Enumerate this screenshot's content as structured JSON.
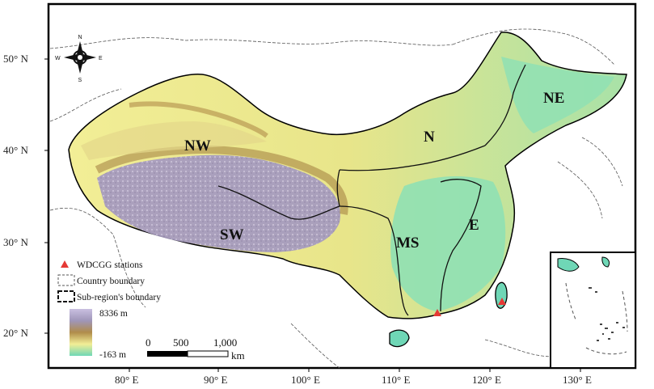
{
  "map": {
    "longitude_ticks": [
      "80° E",
      "90° E",
      "100° E",
      "110° E",
      "120° E",
      "130° E"
    ],
    "latitude_ticks": [
      "20° N",
      "30° N",
      "40° N",
      "50° N"
    ],
    "regions": [
      {
        "code": "NW"
      },
      {
        "code": "SW"
      },
      {
        "code": "N"
      },
      {
        "code": "NE"
      },
      {
        "code": "MS"
      },
      {
        "code": "E"
      }
    ],
    "compass": {
      "n": "N",
      "s": "S",
      "e": "E",
      "w": "W"
    },
    "legend": {
      "station": "WDCGG stations",
      "country_boundary": "Country boundary",
      "subregion_boundary": "Sub-region's boundary",
      "elev_max": "8336 m",
      "elev_min": "-163 m",
      "station_color": "#e53935",
      "elevation_colors": [
        "#6fd7b6",
        "#f2ee96",
        "#b08c4a",
        "#9f96b9",
        "#c9bfe0"
      ]
    },
    "scalebar": {
      "ticks": [
        "0",
        "500",
        "1,000"
      ],
      "unit": "km"
    }
  }
}
